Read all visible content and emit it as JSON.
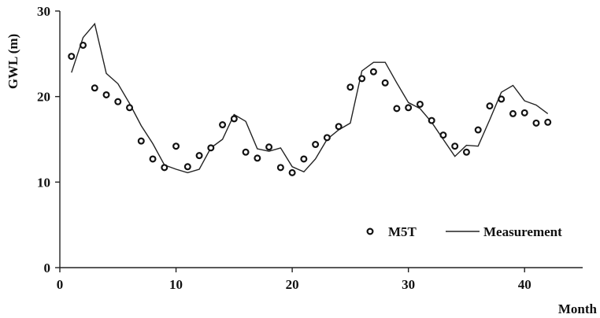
{
  "chart_data": {
    "type": "line",
    "title": "",
    "xlabel": "Month",
    "ylabel": "GWL (m)",
    "xlim": [
      0,
      45
    ],
    "ylim": [
      0,
      30
    ],
    "xticks": [
      0,
      10,
      20,
      30,
      40
    ],
    "yticks": [
      0,
      10,
      20,
      30
    ],
    "grid": false,
    "legend_position": "bottom-right",
    "series": [
      {
        "name": "M5T",
        "style": "markers",
        "marker": "open-circle",
        "x": [
          1,
          2,
          3,
          4,
          5,
          6,
          7,
          8,
          9,
          10,
          11,
          12,
          13,
          14,
          15,
          16,
          17,
          18,
          19,
          20,
          21,
          22,
          23,
          24,
          25,
          26,
          27,
          28,
          29,
          30,
          31,
          32,
          33,
          34,
          35,
          36,
          37,
          38,
          39,
          40,
          41,
          42
        ],
        "y": [
          24.7,
          26.0,
          21.0,
          20.2,
          19.4,
          18.7,
          14.8,
          12.7,
          11.7,
          14.2,
          11.8,
          13.1,
          14.0,
          16.7,
          17.4,
          13.5,
          12.8,
          14.1,
          11.7,
          11.1,
          12.7,
          14.4,
          15.2,
          16.5,
          21.1,
          22.1,
          22.9,
          21.6,
          18.6,
          18.7,
          19.1,
          17.2,
          15.5,
          14.2,
          13.5,
          16.1,
          18.9,
          19.7,
          18.0,
          18.1,
          16.9,
          17.0
        ]
      },
      {
        "name": "Measurement",
        "style": "line",
        "x": [
          1,
          2,
          3,
          4,
          5,
          6,
          7,
          8,
          9,
          10,
          11,
          12,
          13,
          14,
          15,
          16,
          17,
          18,
          19,
          20,
          21,
          22,
          23,
          24,
          25,
          26,
          27,
          28,
          29,
          30,
          31,
          32,
          33,
          34,
          35,
          36,
          37,
          38,
          39,
          40,
          41,
          42
        ],
        "y": [
          22.8,
          26.9,
          28.5,
          22.7,
          21.5,
          19.2,
          16.6,
          14.5,
          12.0,
          11.5,
          11.1,
          11.5,
          14.0,
          15.0,
          17.9,
          17.1,
          13.9,
          13.6,
          14.0,
          11.8,
          11.2,
          12.7,
          15.0,
          16.1,
          16.9,
          23.0,
          24.0,
          24.0,
          21.6,
          19.3,
          18.6,
          17.0,
          15.0,
          13.0,
          14.3,
          14.2,
          17.3,
          20.5,
          21.3,
          19.5,
          19.0,
          18.0
        ]
      }
    ]
  }
}
